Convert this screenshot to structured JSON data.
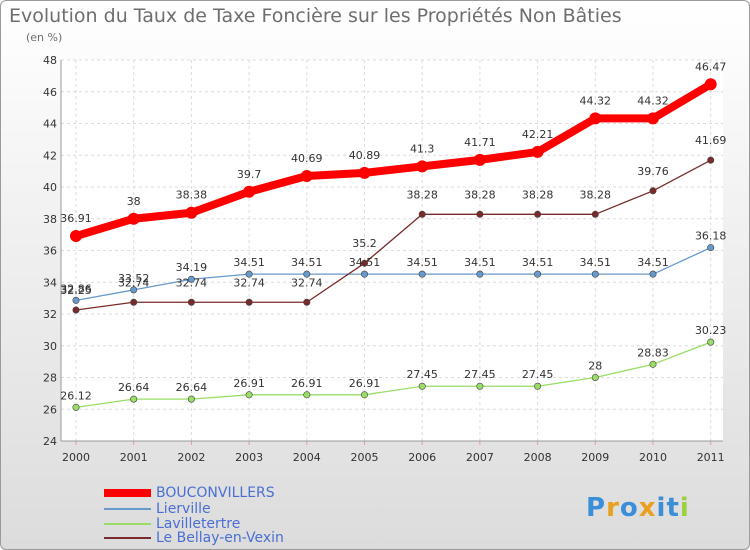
{
  "chart_data": {
    "type": "line",
    "title": "Evolution du Taux de Taxe Foncière sur les Propriétés Non Bâties",
    "subtitle": "(en %)",
    "categories": [
      "2000",
      "2001",
      "2002",
      "2003",
      "2004",
      "2005",
      "2006",
      "2007",
      "2008",
      "2009",
      "2010",
      "2011"
    ],
    "ylim": [
      24,
      48
    ],
    "yticks": [
      24,
      26,
      28,
      30,
      32,
      34,
      36,
      38,
      40,
      42,
      44,
      46,
      48
    ],
    "grid": true,
    "legend_position": "bottom-left",
    "series": [
      {
        "name": "BOUCONVILLERS",
        "color": "#ff0000",
        "values": [
          36.91,
          38,
          38.38,
          39.7,
          40.69,
          40.89,
          41.3,
          41.71,
          42.21,
          44.32,
          44.32,
          46.47
        ],
        "labels": [
          "36.91",
          "38",
          "38.38",
          "39.7",
          "40.69",
          "40.89",
          "41.3",
          "41.71",
          "42.21",
          "44.32",
          "44.32",
          "46.47"
        ]
      },
      {
        "name": "Lierville",
        "color": "#6699cc",
        "values": [
          32.86,
          33.52,
          34.19,
          34.51,
          34.51,
          34.51,
          34.51,
          34.51,
          34.51,
          34.51,
          34.51,
          36.18
        ],
        "labels": [
          "32.86",
          "33.52",
          "34.19",
          "34.51",
          "34.51",
          "34.51",
          "34.51",
          "34.51",
          "34.51",
          "34.51",
          "34.51",
          "36.18"
        ]
      },
      {
        "name": "Lavilletertre",
        "color": "#99dd66",
        "values": [
          26.12,
          26.64,
          26.64,
          26.91,
          26.91,
          26.91,
          27.45,
          27.45,
          27.45,
          28,
          28.83,
          30.23
        ],
        "labels": [
          "26.12",
          "26.64",
          "26.64",
          "26.91",
          "26.91",
          "26.91",
          "27.45",
          "27.45",
          "27.45",
          "28",
          "28.83",
          "30.23"
        ]
      },
      {
        "name": "Le Bellay-en-Vexin",
        "color": "#7a2a2a",
        "values": [
          32.25,
          32.74,
          32.74,
          32.74,
          32.74,
          35.2,
          38.28,
          38.28,
          38.28,
          38.28,
          39.76,
          41.69
        ],
        "labels": [
          "32.25",
          "32.74",
          "32.74",
          "32.74",
          "32.74",
          "35.2",
          "38.28",
          "38.28",
          "38.28",
          "38.28",
          "39.76",
          "41.69"
        ]
      }
    ]
  },
  "logo": {
    "text": "Proxiti"
  }
}
